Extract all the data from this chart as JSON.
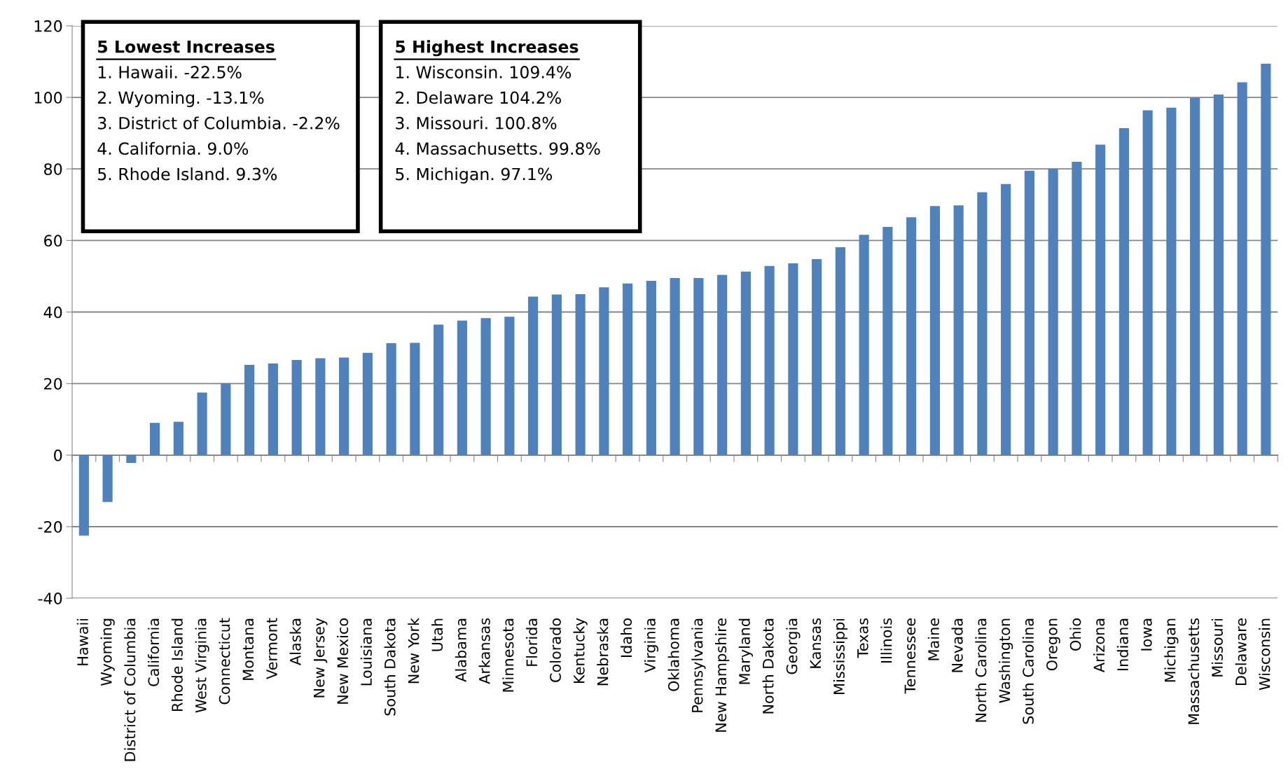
{
  "chart_data": {
    "type": "bar",
    "categories": [
      "Hawaii",
      "Wyoming",
      "District of Columbia",
      "California",
      "Rhode Island",
      "West Virginia",
      "Connecticut",
      "Montana",
      "Vermont",
      "Alaska",
      "New Jersey",
      "New Mexico",
      "Louisiana",
      "South Dakota",
      "New York",
      "Utah",
      "Alabama",
      "Arkansas",
      "Minnesota",
      "Florida",
      "Colorado",
      "Kentucky",
      "Nebraska",
      "Idaho",
      "Virginia",
      "Oklahoma",
      "Pennsylvania",
      "New Hampshire",
      "Maryland",
      "North Dakota",
      "Georgia",
      "Kansas",
      "Mississippi",
      "Texas",
      "Illinois",
      "Tennessee",
      "Maine",
      "Nevada",
      "North Carolina",
      "Washington",
      "South Carolina",
      "Oregon",
      "Ohio",
      "Arizona",
      "Indiana",
      "Iowa",
      "Michigan",
      "Massachusetts",
      "Missouri",
      "Delaware",
      "Wisconsin"
    ],
    "values": [
      -22.5,
      -13.1,
      -2.2,
      9.0,
      9.3,
      17.5,
      20.0,
      25.2,
      25.6,
      26.6,
      27.1,
      27.3,
      28.6,
      31.3,
      31.4,
      36.5,
      37.6,
      38.3,
      38.7,
      44.3,
      44.9,
      45.0,
      46.9,
      48.0,
      48.7,
      49.5,
      49.5,
      50.4,
      51.3,
      52.9,
      53.6,
      54.8,
      58.1,
      61.6,
      63.8,
      66.5,
      69.6,
      69.8,
      73.5,
      75.8,
      79.5,
      80.1,
      82.0,
      86.8,
      91.4,
      96.4,
      97.1,
      99.8,
      100.8,
      104.2,
      109.4
    ],
    "color": "#4f81bd",
    "ylim": [
      -40,
      120
    ],
    "yticks": [
      -40,
      -20,
      0,
      20,
      40,
      60,
      80,
      100,
      120
    ],
    "grid": "y",
    "annotations": [
      "5 Lowest Increases",
      "1. Hawaii. -22.5%",
      "2. Wyoming. -13.1%",
      "3. District of Columbia. -2.2%",
      "4. California. 9.0%",
      "5. Rhode Island. 9.3%",
      "5 Highest Increases",
      "1. Wisconsin. 109.4%",
      "2. Delaware 104.2%",
      "3. Missouri. 100.8%",
      "4. Massachusetts. 99.8%",
      "5. Michigan. 97.1%"
    ]
  }
}
